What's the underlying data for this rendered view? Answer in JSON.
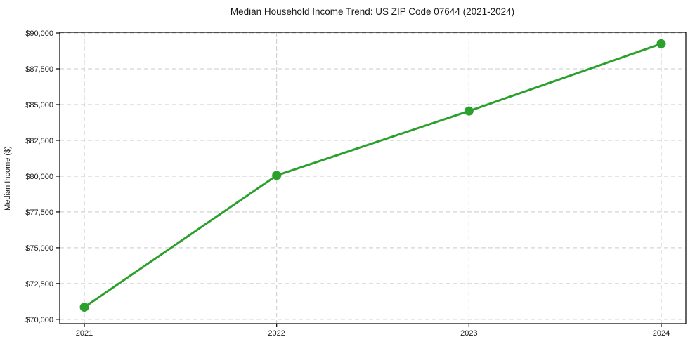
{
  "figure": {
    "background_color": "#ffffff"
  },
  "chart_data": {
    "type": "line",
    "title": "Median Household Income Trend: US ZIP Code 07644 (2021-2024)",
    "xlabel": "",
    "ylabel": "Median Income ($)",
    "categories": [
      2021,
      2022,
      2023,
      2024
    ],
    "xtick_labels": [
      "2021",
      "2022",
      "2023",
      "2024"
    ],
    "values": [
      70850,
      80050,
      84550,
      89250
    ],
    "ytick_values": [
      70000,
      72500,
      75000,
      77500,
      80000,
      82500,
      85000,
      87500,
      90000
    ],
    "ytick_labels": [
      "$70,000",
      "$72,500",
      "$75,000",
      "$77,500",
      "$80,000",
      "$82,500",
      "$85,000",
      "$87,500",
      "$90,000"
    ],
    "xlim": [
      2020.872,
      2024.128
    ],
    "ylim": [
      69700,
      90050
    ],
    "grid": true,
    "grid_style": "dashed",
    "legend_position": "none",
    "line_color": "#2ca02c",
    "marker_shape": "circle",
    "grid_color": "#c9c9c9",
    "axis_color": "#000000",
    "text_color": "#1a1a1a"
  }
}
